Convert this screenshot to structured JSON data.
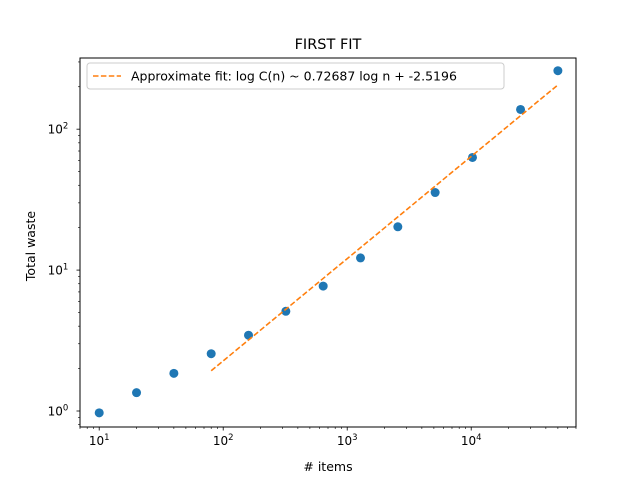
{
  "chart_data": {
    "type": "scatter",
    "title": "FIRST FIT",
    "xlabel": "# items",
    "ylabel": "Total waste",
    "x_scale": "log",
    "y_scale": "log",
    "xlim": [
      7,
      70000
    ],
    "ylim": [
      0.77,
      320
    ],
    "grid": false,
    "legend_position": "top-left",
    "x_ticks": [
      {
        "base": "10",
        "exp": "1",
        "value": 10
      },
      {
        "base": "10",
        "exp": "2",
        "value": 100
      },
      {
        "base": "10",
        "exp": "3",
        "value": 1000
      },
      {
        "base": "10",
        "exp": "4",
        "value": 10000
      }
    ],
    "y_ticks": [
      {
        "base": "10",
        "exp": "0",
        "value": 1
      },
      {
        "base": "10",
        "exp": "1",
        "value": 10
      },
      {
        "base": "10",
        "exp": "2",
        "value": 100
      }
    ],
    "series": [
      {
        "type": "scatter",
        "color": "#1f77b4",
        "x": [
          10,
          20,
          40,
          80,
          160,
          320,
          640,
          1280,
          2560,
          5120,
          10240,
          25000,
          50000
        ],
        "y": [
          0.97,
          1.35,
          1.85,
          2.55,
          3.45,
          5.1,
          7.7,
          12.2,
          20.3,
          35.5,
          63,
          138,
          260
        ]
      },
      {
        "type": "line",
        "style": "dashed",
        "color": "#ff7f0e",
        "name": "Approximate fit: log C(n) ~ 0.72687 log n + -2.5196",
        "x": [
          80,
          50000
        ],
        "y": [
          1.93,
          206
        ]
      }
    ]
  }
}
